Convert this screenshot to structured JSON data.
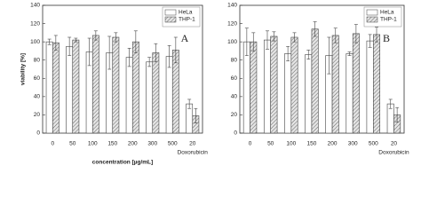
{
  "chart_data": [
    {
      "type": "bar",
      "ylabel": "viability [%]",
      "xlabel": "concentration [µg/mL]",
      "annotation": "A",
      "group_label": "Doxorubicin",
      "categories": [
        "0",
        "50",
        "100",
        "150",
        "200",
        "300",
        "500",
        "20"
      ],
      "series": [
        {
          "name": "HeLa",
          "color": "#ffffff",
          "pattern": "solid",
          "values": [
            100,
            95,
            89,
            88,
            83,
            78,
            84,
            32
          ],
          "errors": [
            3,
            10,
            15,
            18,
            10,
            5,
            12,
            5
          ]
        },
        {
          "name": "THP-1",
          "color": "#d0d0d0",
          "pattern": "hatch",
          "values": [
            99,
            102,
            107,
            105,
            100,
            88,
            91,
            19
          ],
          "errors": [
            8,
            2,
            5,
            5,
            12,
            10,
            14,
            8
          ]
        }
      ],
      "ylim": [
        0,
        140
      ],
      "yticks": [
        0,
        20,
        40,
        60,
        80,
        100,
        120,
        140
      ],
      "legend": "upper right"
    },
    {
      "type": "bar",
      "annotation": "B",
      "group_label": "Doxorubicin",
      "categories": [
        "0",
        "50",
        "100",
        "150",
        "200",
        "300",
        "500",
        "20"
      ],
      "series": [
        {
          "name": "HeLa",
          "color": "#ffffff",
          "pattern": "solid",
          "values": [
            100,
            102,
            87,
            86,
            85,
            87,
            101,
            32
          ],
          "errors": [
            15,
            10,
            8,
            5,
            20,
            2,
            7,
            5
          ]
        },
        {
          "name": "THP-1",
          "color": "#d0d0d0",
          "pattern": "hatch",
          "values": [
            100,
            106,
            105,
            114,
            107,
            109,
            108,
            20
          ],
          "errors": [
            10,
            5,
            5,
            8,
            8,
            10,
            8,
            8
          ]
        }
      ],
      "ylim": [
        0,
        140
      ],
      "yticks": [
        0,
        20,
        40,
        60,
        80,
        100,
        120,
        140
      ],
      "legend": "upper right"
    }
  ]
}
